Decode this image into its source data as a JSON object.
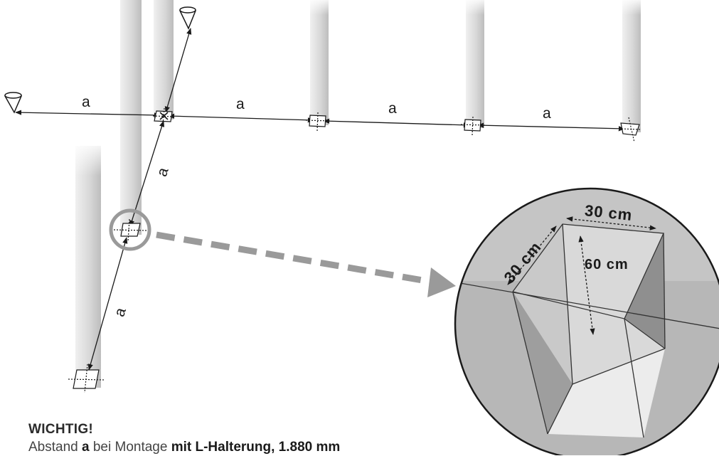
{
  "labels": {
    "spacing": "a",
    "width_top": "30 cm",
    "width_side": "30 cm",
    "depth": "60 cm"
  },
  "note": {
    "title": "WICHTIG!",
    "text_1": "Abstand ",
    "text_a": "a",
    "text_2": " bei Montage ",
    "text_bold": "mit L-Halterung, 1.880 mm"
  },
  "colors": {
    "post_light": "#f2f2f2",
    "post_dark": "#c4c4c4",
    "line": "#1a1a1a",
    "circle": "#999999",
    "arrow": "#9a9a9a",
    "zoom_bg": "#b5b5b5"
  },
  "icons": [
    "sightline-cone-icon",
    "post-foot-icon",
    "zoom-circle-icon",
    "dashed-arrow-icon"
  ]
}
